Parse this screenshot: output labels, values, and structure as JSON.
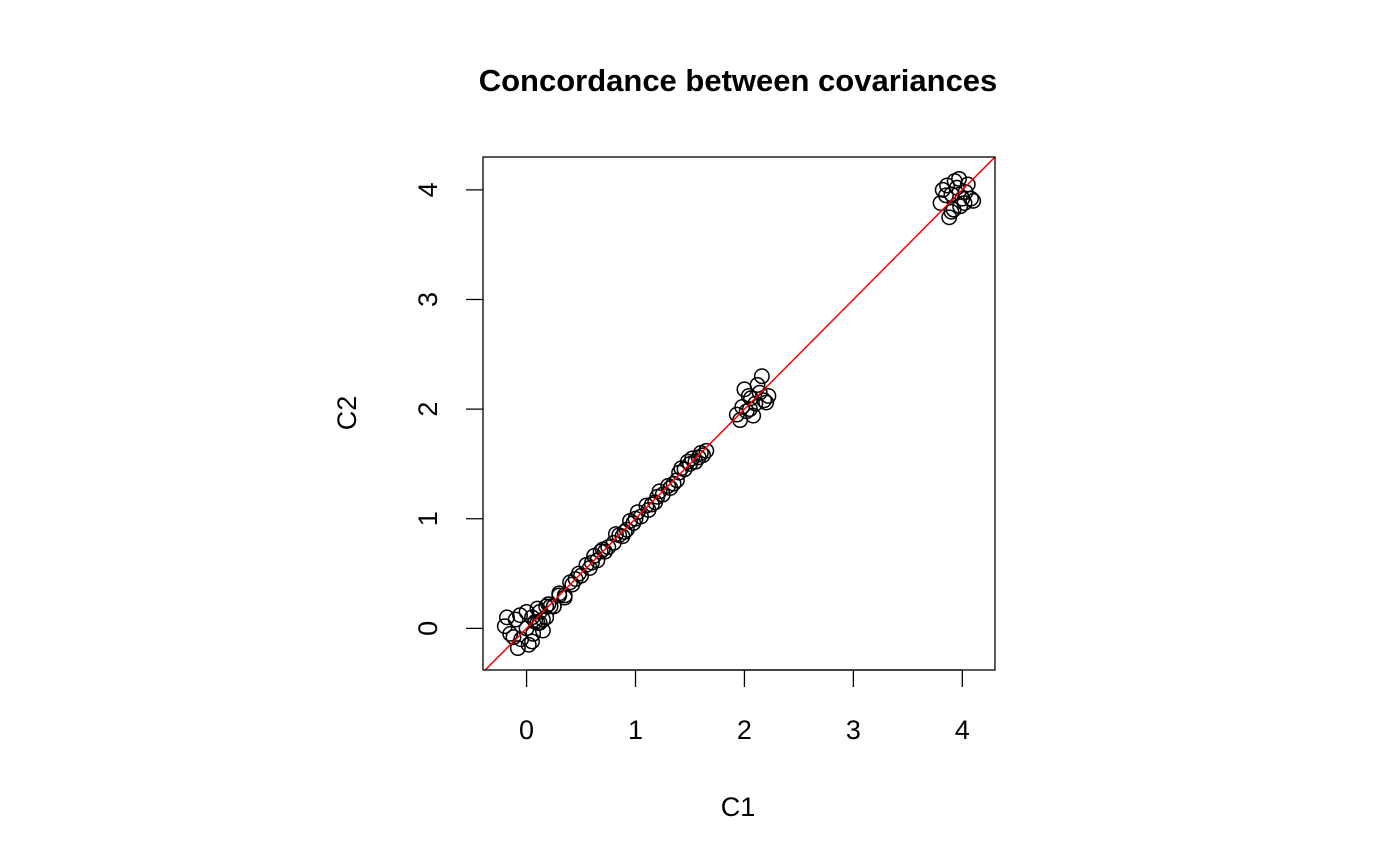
{
  "chart_data": {
    "type": "scatter",
    "title": "Concordance between covariances",
    "xlabel": "C1",
    "ylabel": "C2",
    "xlim": [
      -0.4,
      4.3
    ],
    "ylim": [
      -0.38,
      4.3
    ],
    "x_ticks": [
      0,
      1,
      2,
      3,
      4
    ],
    "y_ticks": [
      0,
      1,
      2,
      3,
      4
    ],
    "x_tick_labels": [
      "0",
      "1",
      "2",
      "3",
      "4"
    ],
    "y_tick_labels": [
      "0",
      "1",
      "2",
      "3",
      "4"
    ],
    "grid": false,
    "point_style": "open-circle",
    "point_color": "#000000",
    "reference_line": {
      "type": "identity",
      "intercept": 0,
      "slope": 1,
      "color": "#ff0000"
    },
    "x": [
      -0.2,
      -0.15,
      -0.1,
      -0.05,
      0.0,
      0.05,
      0.1,
      0.15,
      -0.18,
      -0.12,
      -0.06,
      0.02,
      0.08,
      0.12,
      0.18,
      0.22,
      -0.08,
      0.0,
      0.06,
      0.1,
      0.15,
      0.2,
      0.25,
      0.3,
      0.05,
      0.12,
      0.18,
      0.25,
      0.3,
      0.35,
      0.4,
      0.45,
      0.35,
      0.42,
      0.5,
      0.55,
      0.6,
      0.65,
      0.7,
      0.75,
      0.8,
      0.85,
      0.9,
      0.95,
      1.0,
      1.05,
      1.1,
      1.15,
      1.2,
      1.25,
      1.3,
      1.35,
      1.4,
      1.45,
      1.5,
      1.55,
      1.6,
      1.65,
      0.62,
      0.72,
      0.82,
      0.92,
      1.02,
      1.12,
      1.22,
      1.32,
      1.42,
      1.52,
      1.62,
      0.48,
      0.58,
      0.68,
      0.88,
      0.98,
      1.18,
      1.38,
      1.48,
      1.58,
      1.93,
      1.98,
      2.02,
      2.06,
      2.1,
      2.14,
      2.18,
      2.22,
      1.96,
      2.0,
      2.05,
      2.12,
      2.2,
      2.08,
      2.16,
      2.04,
      3.8,
      3.85,
      3.9,
      3.95,
      4.0,
      4.05,
      4.1,
      3.82,
      3.88,
      3.93,
      3.98,
      4.03,
      4.08,
      3.86,
      3.92,
      3.97,
      4.02,
      3.9
    ],
    "y": [
      0.02,
      -0.05,
      0.08,
      -0.1,
      0.0,
      -0.12,
      0.05,
      -0.02,
      0.1,
      -0.08,
      0.12,
      -0.15,
      0.06,
      0.15,
      0.1,
      0.2,
      -0.18,
      0.15,
      -0.05,
      0.18,
      0.08,
      0.22,
      0.2,
      0.3,
      0.1,
      0.05,
      0.2,
      0.2,
      0.32,
      0.3,
      0.42,
      0.45,
      0.28,
      0.4,
      0.48,
      0.58,
      0.6,
      0.62,
      0.72,
      0.74,
      0.78,
      0.85,
      0.88,
      0.98,
      1.0,
      1.02,
      1.12,
      1.13,
      1.2,
      1.22,
      1.3,
      1.32,
      1.42,
      1.45,
      1.5,
      1.52,
      1.6,
      1.62,
      0.66,
      0.7,
      0.86,
      0.9,
      1.06,
      1.08,
      1.25,
      1.28,
      1.46,
      1.55,
      1.58,
      0.5,
      0.55,
      0.7,
      0.84,
      0.96,
      1.15,
      1.35,
      1.52,
      1.56,
      1.95,
      2.02,
      1.98,
      2.1,
      2.05,
      2.15,
      2.08,
      2.12,
      1.9,
      2.18,
      2.0,
      2.22,
      2.06,
      1.94,
      2.3,
      2.12,
      3.88,
      3.95,
      3.8,
      4.02,
      3.92,
      4.05,
      3.9,
      4.0,
      3.75,
      4.08,
      3.85,
      3.98,
      3.92,
      4.04,
      3.82,
      4.1,
      3.88,
      3.96
    ]
  }
}
